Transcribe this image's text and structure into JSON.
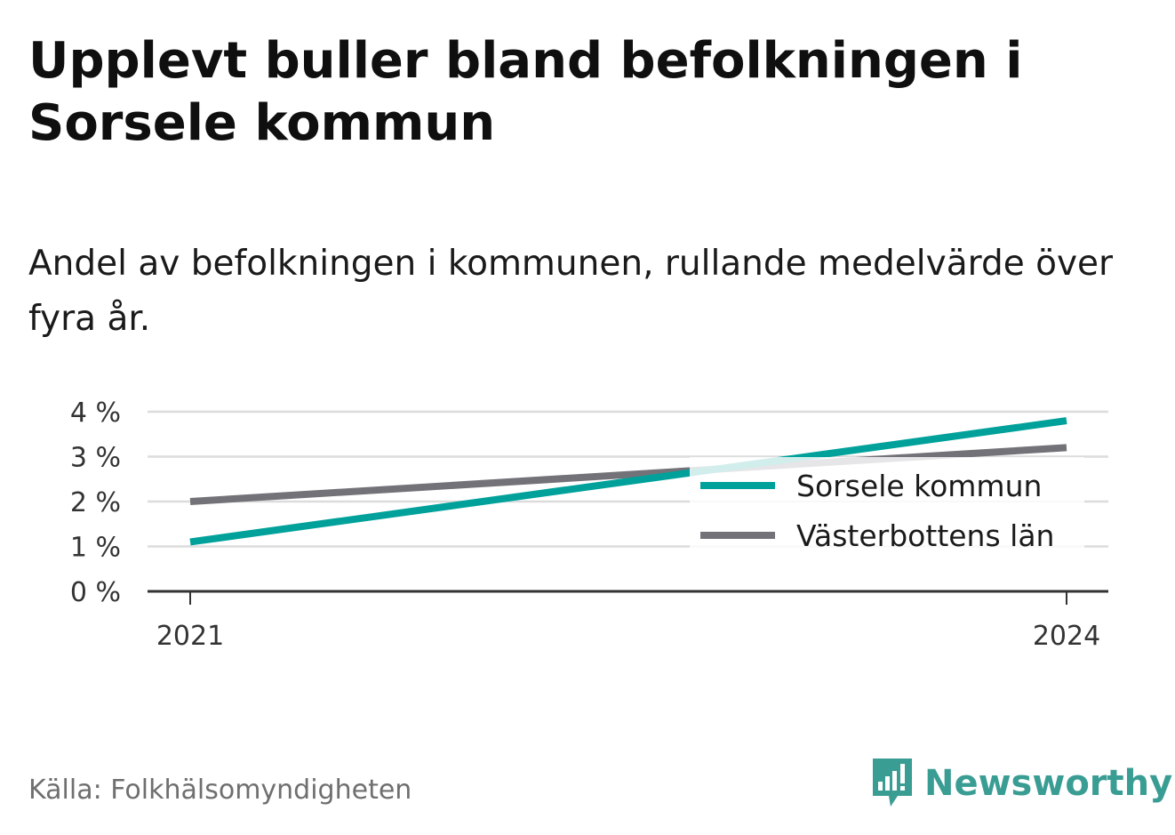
{
  "title": "Upplevt buller bland befolkningen i Sorsele kommun",
  "subtitle": "Andel av befolkningen i kommunen, rullande medelvärde över fyra år.",
  "source": "Källa: Folkhälsomyndigheten",
  "brand": {
    "name": "Newsworthy",
    "icon": "newsworthy-logo-icon",
    "color": "#3a9d94"
  },
  "chart_data": {
    "type": "line",
    "x": [
      2021,
      2024
    ],
    "x_tick_labels": [
      "2021",
      "2024"
    ],
    "y_ticks": [
      0,
      1,
      2,
      3,
      4
    ],
    "y_tick_labels": [
      "0 %",
      "1 %",
      "2 %",
      "3 %",
      "4 %"
    ],
    "ylim": [
      0,
      4
    ],
    "y_unit": "%",
    "grid": true,
    "legend_position": "right",
    "series": [
      {
        "name": "Sorsele kommun",
        "color": "#00a19a",
        "values": [
          1.1,
          3.8
        ]
      },
      {
        "name": "Västerbottens län",
        "color": "#737278",
        "values": [
          2.0,
          3.2
        ]
      }
    ]
  }
}
